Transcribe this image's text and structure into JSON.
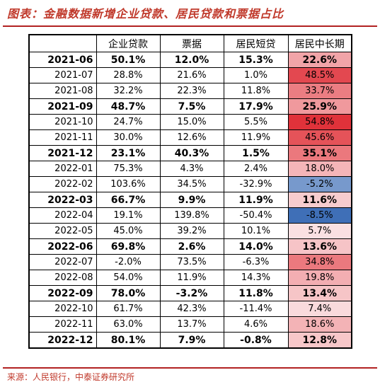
{
  "title": "图表：金融数据新增企业贷款、居民贷款和票据占比",
  "source": "来源：人民银行，中泰证券研究所",
  "colors": {
    "accent": "#b22222",
    "positive_max": "#e0323a",
    "negative_max": "#3f6fb7"
  },
  "chart_data": {
    "type": "table",
    "columns": [
      "",
      "企业贷款",
      "票据",
      "居民短贷",
      "居民中长期"
    ],
    "rows": [
      {
        "label": "2021-06",
        "quarter": true,
        "values": [
          "50.1%",
          "12.0%",
          "15.3%",
          "22.6%"
        ],
        "heat": 22.6
      },
      {
        "label": "2021-07",
        "quarter": false,
        "values": [
          "28.8%",
          "21.6%",
          "1.0%",
          "48.5%"
        ],
        "heat": 48.5
      },
      {
        "label": "2021-08",
        "quarter": false,
        "values": [
          "32.2%",
          "22.3%",
          "11.8%",
          "33.7%"
        ],
        "heat": 33.7
      },
      {
        "label": "2021-09",
        "quarter": true,
        "values": [
          "48.7%",
          "7.5%",
          "17.9%",
          "25.9%"
        ],
        "heat": 25.9
      },
      {
        "label": "2021-10",
        "quarter": false,
        "values": [
          "24.7%",
          "15.0%",
          "5.5%",
          "54.8%"
        ],
        "heat": 54.8
      },
      {
        "label": "2021-11",
        "quarter": false,
        "values": [
          "30.0%",
          "12.6%",
          "11.9%",
          "45.6%"
        ],
        "heat": 45.6
      },
      {
        "label": "2021-12",
        "quarter": true,
        "values": [
          "23.1%",
          "40.3%",
          "1.5%",
          "35.1%"
        ],
        "heat": 35.1
      },
      {
        "label": "2022-01",
        "quarter": false,
        "values": [
          "75.3%",
          "4.3%",
          "2.4%",
          "18.0%"
        ],
        "heat": 18.0
      },
      {
        "label": "2022-02",
        "quarter": false,
        "values": [
          "103.6%",
          "34.5%",
          "-32.9%",
          "-5.2%"
        ],
        "heat": -5.2
      },
      {
        "label": "2022-03",
        "quarter": true,
        "values": [
          "66.7%",
          "9.9%",
          "11.9%",
          "11.6%"
        ],
        "heat": 11.6
      },
      {
        "label": "2022-04",
        "quarter": false,
        "values": [
          "19.1%",
          "139.8%",
          "-50.4%",
          "-8.5%"
        ],
        "heat": -8.5
      },
      {
        "label": "2022-05",
        "quarter": false,
        "values": [
          "45.0%",
          "39.2%",
          "10.1%",
          "5.7%"
        ],
        "heat": 5.7
      },
      {
        "label": "2022-06",
        "quarter": true,
        "values": [
          "69.8%",
          "2.6%",
          "14.0%",
          "13.6%"
        ],
        "heat": 13.6
      },
      {
        "label": "2022-07",
        "quarter": false,
        "values": [
          "-2.0%",
          "73.5%",
          "-6.3%",
          "34.8%"
        ],
        "heat": 34.8
      },
      {
        "label": "2022-08",
        "quarter": false,
        "values": [
          "54.0%",
          "11.9%",
          "14.3%",
          "19.8%"
        ],
        "heat": 19.8
      },
      {
        "label": "2022-09",
        "quarter": true,
        "values": [
          "78.0%",
          "-3.2%",
          "11.8%",
          "13.4%"
        ],
        "heat": 13.4
      },
      {
        "label": "2022-10",
        "quarter": false,
        "values": [
          "61.7%",
          "42.3%",
          "-11.4%",
          "7.4%"
        ],
        "heat": 7.4
      },
      {
        "label": "2022-11",
        "quarter": false,
        "values": [
          "63.0%",
          "13.7%",
          "4.6%",
          "18.6%"
        ],
        "heat": 18.6
      },
      {
        "label": "2022-12",
        "quarter": true,
        "values": [
          "80.1%",
          "7.9%",
          "-0.8%",
          "12.8%"
        ],
        "heat": 12.8
      }
    ]
  }
}
